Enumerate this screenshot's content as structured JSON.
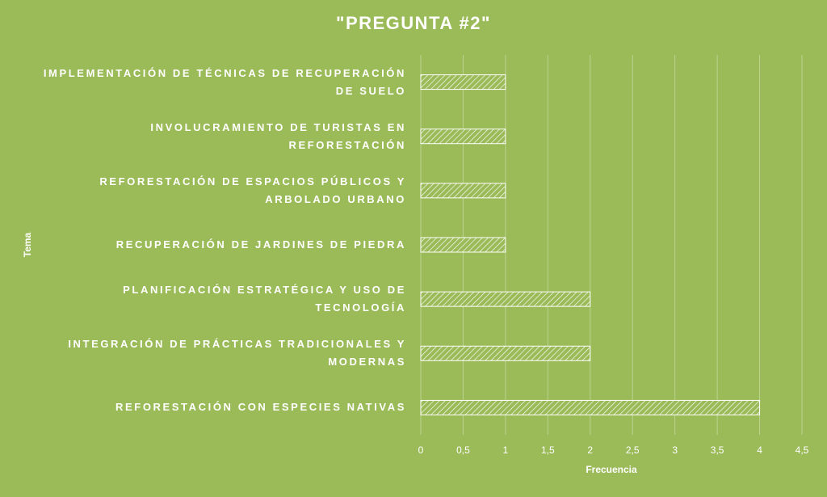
{
  "chart_data": {
    "type": "bar",
    "orientation": "horizontal",
    "title": "\"PREGUNTA #2\"",
    "x_label": "Frecuencia",
    "y_label": "Tema",
    "categories": [
      "IMPLEMENTACIÓN DE TÉCNICAS DE RECUPERACIÓN DE SUELO",
      "INVOLUCRAMIENTO DE TURISTAS EN REFORESTACIÓN",
      "REFORESTACIÓN DE ESPACIOS PÚBLICOS Y ARBOLADO URBANO",
      "RECUPERACIÓN DE JARDINES DE PIEDRA",
      "PLANIFICACIÓN ESTRATÉGICA Y USO DE TECNOLOGÍA",
      "INTEGRACIÓN DE PRÁCTICAS TRADICIONALES Y MODERNAS",
      "REFORESTACIÓN CON ESPECIES NATIVAS"
    ],
    "values": [
      1,
      1,
      1,
      1,
      2,
      2,
      4
    ],
    "color": "#ffffff",
    "xlim": [
      0,
      4.5
    ],
    "xticks": [
      0,
      {
        "value": 0.5,
        "label": "0,5"
      },
      1,
      {
        "value": 1.5,
        "label": "1,5"
      },
      2,
      {
        "value": 2.5,
        "label": "2,5"
      },
      3,
      {
        "value": 3.5,
        "label": "3,5"
      },
      4,
      {
        "value": 4.5,
        "label": "4,5"
      }
    ],
    "grid": true
  }
}
